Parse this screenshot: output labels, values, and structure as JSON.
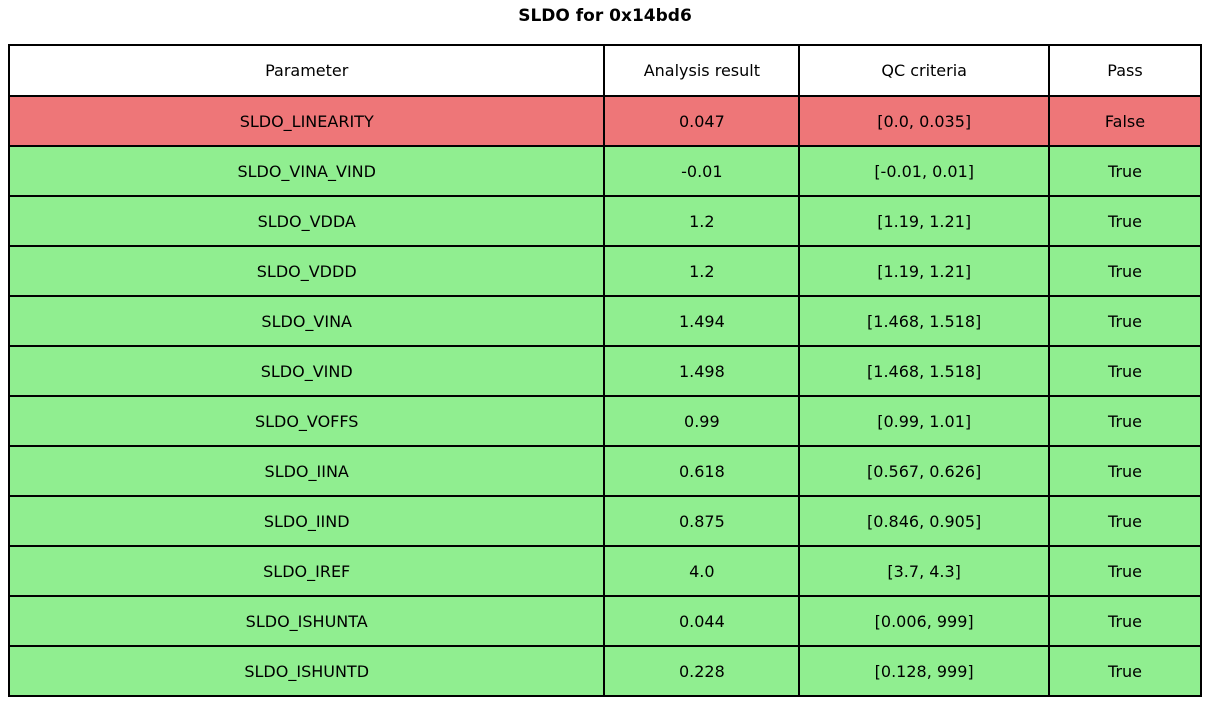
{
  "page": {
    "title": "SLDO for 0x14bd6"
  },
  "colors": {
    "pass_bg": "#90ee90",
    "fail_bg": "#ee7678",
    "header_bg": "#ffffff",
    "border": "#000000",
    "text": "#000000"
  },
  "table": {
    "headers": [
      "Parameter",
      "Analysis result",
      "QC criteria",
      "Pass"
    ],
    "rows": [
      {
        "parameter": "SLDO_LINEARITY",
        "result": "0.047",
        "criteria": "[0.0, 0.035]",
        "pass": "False"
      },
      {
        "parameter": "SLDO_VINA_VIND",
        "result": "-0.01",
        "criteria": "[-0.01, 0.01]",
        "pass": "True"
      },
      {
        "parameter": "SLDO_VDDA",
        "result": "1.2",
        "criteria": "[1.19, 1.21]",
        "pass": "True"
      },
      {
        "parameter": "SLDO_VDDD",
        "result": "1.2",
        "criteria": "[1.19, 1.21]",
        "pass": "True"
      },
      {
        "parameter": "SLDO_VINA",
        "result": "1.494",
        "criteria": "[1.468, 1.518]",
        "pass": "True"
      },
      {
        "parameter": "SLDO_VIND",
        "result": "1.498",
        "criteria": "[1.468, 1.518]",
        "pass": "True"
      },
      {
        "parameter": "SLDO_VOFFS",
        "result": "0.99",
        "criteria": "[0.99, 1.01]",
        "pass": "True"
      },
      {
        "parameter": "SLDO_IINA",
        "result": "0.618",
        "criteria": "[0.567, 0.626]",
        "pass": "True"
      },
      {
        "parameter": "SLDO_IIND",
        "result": "0.875",
        "criteria": "[0.846, 0.905]",
        "pass": "True"
      },
      {
        "parameter": "SLDO_IREF",
        "result": "4.0",
        "criteria": "[3.7, 4.3]",
        "pass": "True"
      },
      {
        "parameter": "SLDO_ISHUNTA",
        "result": "0.044",
        "criteria": "[0.006, 999]",
        "pass": "True"
      },
      {
        "parameter": "SLDO_ISHUNTD",
        "result": "0.228",
        "criteria": "[0.128, 999]",
        "pass": "True"
      }
    ]
  },
  "chart_data": {
    "type": "table",
    "title": "SLDO for 0x14bd6",
    "columns": [
      "Parameter",
      "Analysis result",
      "QC criteria",
      "Pass"
    ],
    "rows": [
      [
        "SLDO_LINEARITY",
        0.047,
        "[0.0, 0.035]",
        "False"
      ],
      [
        "SLDO_VINA_VIND",
        -0.01,
        "[-0.01, 0.01]",
        "True"
      ],
      [
        "SLDO_VDDA",
        1.2,
        "[1.19, 1.21]",
        "True"
      ],
      [
        "SLDO_VDDD",
        1.2,
        "[1.19, 1.21]",
        "True"
      ],
      [
        "SLDO_VINA",
        1.494,
        "[1.468, 1.518]",
        "True"
      ],
      [
        "SLDO_VIND",
        1.498,
        "[1.468, 1.518]",
        "True"
      ],
      [
        "SLDO_VOFFS",
        0.99,
        "[0.99, 1.01]",
        "True"
      ],
      [
        "SLDO_IINA",
        0.618,
        "[0.567, 0.626]",
        "True"
      ],
      [
        "SLDO_IIND",
        0.875,
        "[0.846, 0.905]",
        "True"
      ],
      [
        "SLDO_IREF",
        4.0,
        "[3.7, 4.3]",
        "True"
      ],
      [
        "SLDO_ISHUNTA",
        0.044,
        "[0.006, 999]",
        "True"
      ],
      [
        "SLDO_ISHUNTD",
        0.228,
        "[0.128, 999]",
        "True"
      ]
    ],
    "row_status_colors": {
      "pass": "#90ee90",
      "fail": "#ee7678"
    },
    "layout": {
      "grid": true,
      "header_background": "#ffffff"
    }
  }
}
